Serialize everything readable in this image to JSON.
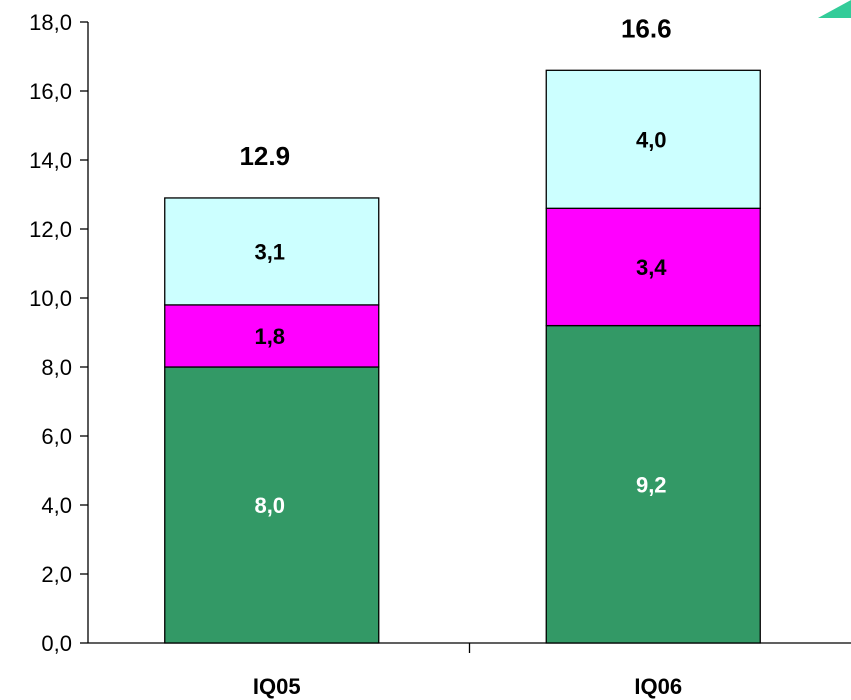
{
  "chart_data": {
    "type": "bar",
    "stacked": true,
    "categories": [
      "IQ05",
      "IQ06"
    ],
    "series": [
      {
        "values": [
          8.0,
          9.2
        ],
        "labels": [
          "8,0",
          "9,2"
        ],
        "color": "#339966",
        "label_color": "#ffffff"
      },
      {
        "values": [
          1.8,
          3.4
        ],
        "labels": [
          "1,8",
          "3,4"
        ],
        "color": "#ff00ff",
        "label_color": "#000000"
      },
      {
        "values": [
          3.1,
          4.0
        ],
        "labels": [
          "3,1",
          "4,0"
        ],
        "color": "#ccffff",
        "label_color": "#000000"
      }
    ],
    "totals": [
      12.9,
      16.6
    ],
    "total_labels": [
      "12.9",
      "16.6"
    ],
    "ylim": [
      0,
      18
    ],
    "yticks": [
      "0,0",
      "2,0",
      "4,0",
      "6,0",
      "8,0",
      "10,0",
      "12,0",
      "14,0",
      "16,0",
      "18,0"
    ],
    "xlabel": "",
    "ylabel": "",
    "title": "",
    "grid": false,
    "legend": "none"
  },
  "decoration": {
    "corner_shape_color": "#33cc99"
  }
}
